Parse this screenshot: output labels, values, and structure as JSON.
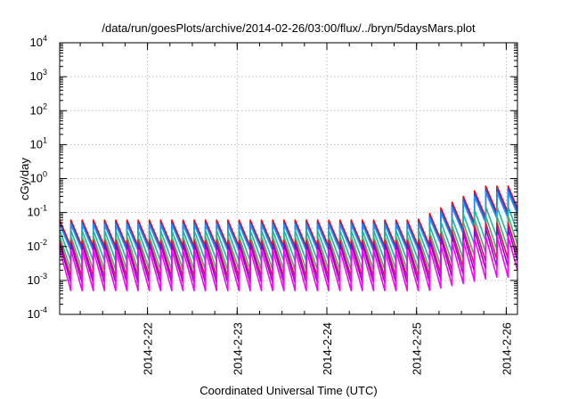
{
  "chart_data": {
    "type": "line",
    "title": "/data/run/goesPlots/archive/2014-02-26/03:00/flux/../bryn/5daysMars.plot",
    "xlabel": "Coordinated Universal Time (UTC)",
    "ylabel": "cGy/day",
    "y_scale": "log",
    "ylim": [
      0.0001,
      10000
    ],
    "y_ticks": [
      {
        "value": 0.0001,
        "base": "10",
        "exp": "-4"
      },
      {
        "value": 0.001,
        "base": "10",
        "exp": "-3"
      },
      {
        "value": 0.01,
        "base": "10",
        "exp": "-2"
      },
      {
        "value": 0.1,
        "base": "10",
        "exp": "-1"
      },
      {
        "value": 1,
        "base": "10",
        "exp": "0"
      },
      {
        "value": 10,
        "base": "10",
        "exp": "1"
      },
      {
        "value": 100,
        "base": "10",
        "exp": "2"
      },
      {
        "value": 1000,
        "base": "10",
        "exp": "3"
      },
      {
        "value": 10000,
        "base": "10",
        "exp": "4"
      }
    ],
    "xlim": [
      "2014-02-21T00:30",
      "2014-02-26T03:00"
    ],
    "x_ticks": [
      "2014-2-22",
      "2014-2-23",
      "2014-2-24",
      "2014-2-25",
      "2014-2-26"
    ],
    "grid": true,
    "legend": "none",
    "sawtooth_period_hours": 3,
    "series": [
      {
        "color": "#ff0000",
        "peak_quiet": 0.06,
        "peak_active": 0.6,
        "drop_ratio": 6
      },
      {
        "color": "#2f4fd0",
        "peak_quiet": 0.05,
        "peak_active": 0.5,
        "drop_ratio": 6
      },
      {
        "color": "#1e90ff",
        "peak_quiet": 0.045,
        "peak_active": 0.4,
        "drop_ratio": 6
      },
      {
        "color": "#20b2aa",
        "peak_quiet": 0.03,
        "peak_active": 0.15,
        "drop_ratio": 8
      },
      {
        "color": "#3cb371",
        "peak_quiet": 0.02,
        "peak_active": 0.08,
        "drop_ratio": 10
      },
      {
        "color": "#dc143c",
        "peak_quiet": 0.015,
        "peak_active": 0.05,
        "drop_ratio": 12
      },
      {
        "color": "#9400d3",
        "peak_quiet": 0.012,
        "peak_active": 0.035,
        "drop_ratio": 14
      },
      {
        "color": "#ff00ff",
        "peak_quiet": 0.008,
        "peak_active": 0.02,
        "drop_ratio": 16
      }
    ]
  }
}
